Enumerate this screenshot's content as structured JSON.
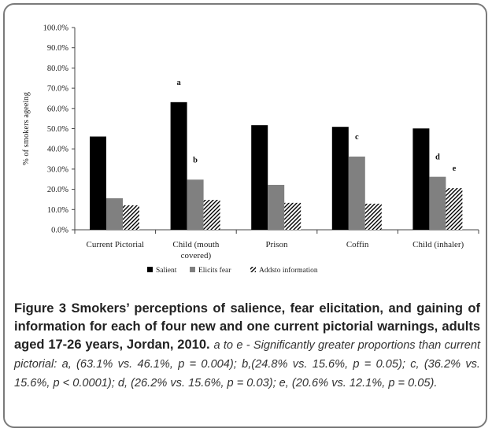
{
  "chart_data": {
    "type": "bar",
    "categories": [
      [
        "Current Pictorial"
      ],
      [
        "Child (mouth",
        "covered)"
      ],
      [
        "Prison"
      ],
      [
        "Coffin"
      ],
      [
        "Child (inhaler)"
      ]
    ],
    "series": [
      {
        "name": "Salient",
        "values": [
          46.1,
          63.1,
          51.7,
          50.9,
          50.1
        ],
        "color": "#000000",
        "pattern": "solid"
      },
      {
        "name": "Elicits fear",
        "values": [
          15.6,
          24.8,
          22.2,
          36.2,
          26.2
        ],
        "color": "#808080",
        "pattern": "solid"
      },
      {
        "name": "Addsto information",
        "values": [
          12.1,
          14.8,
          13.3,
          12.9,
          20.6
        ],
        "color": "#000000",
        "pattern": "diagonal-hatch"
      }
    ],
    "ylabel": "% of smokers ageeing",
    "ylim": [
      0,
      100
    ],
    "ytick_labels": [
      "0.0%",
      "10.0%",
      "20.0%",
      "30.0%",
      "40.0%",
      "50.0%",
      "60.0%",
      "70.0%",
      "80.0%",
      "90.0%",
      "100.0%"
    ],
    "annotations": [
      {
        "text": "a",
        "category": 1,
        "series": 0
      },
      {
        "text": "b",
        "category": 1,
        "series": 1
      },
      {
        "text": "c",
        "category": 3,
        "series": 1
      },
      {
        "text": "d",
        "category": 4,
        "series": 1
      },
      {
        "text": "e",
        "category": 4,
        "series": 2
      }
    ],
    "legend_position": "bottom",
    "grid": false
  },
  "caption": {
    "title": "Figure 3 Smokers’ perceptions of salience, fear elicitation, and gaining of information for each of four new and one current pictorial warnings, adults aged 17-26 years, Jordan, 2010",
    "note": "a to e - Significantly greater proportions than current pictorial: a, (63.1% vs. 46.1%, p = 0.004); b,(24.8% vs. 15.6%, p = 0.05); c, (36.2% vs. 15.6%, p < 0.0001); d, (26.2% vs. 15.6%, p = 0.03); e, (20.6% vs. 12.1%, p = 0.05)."
  }
}
